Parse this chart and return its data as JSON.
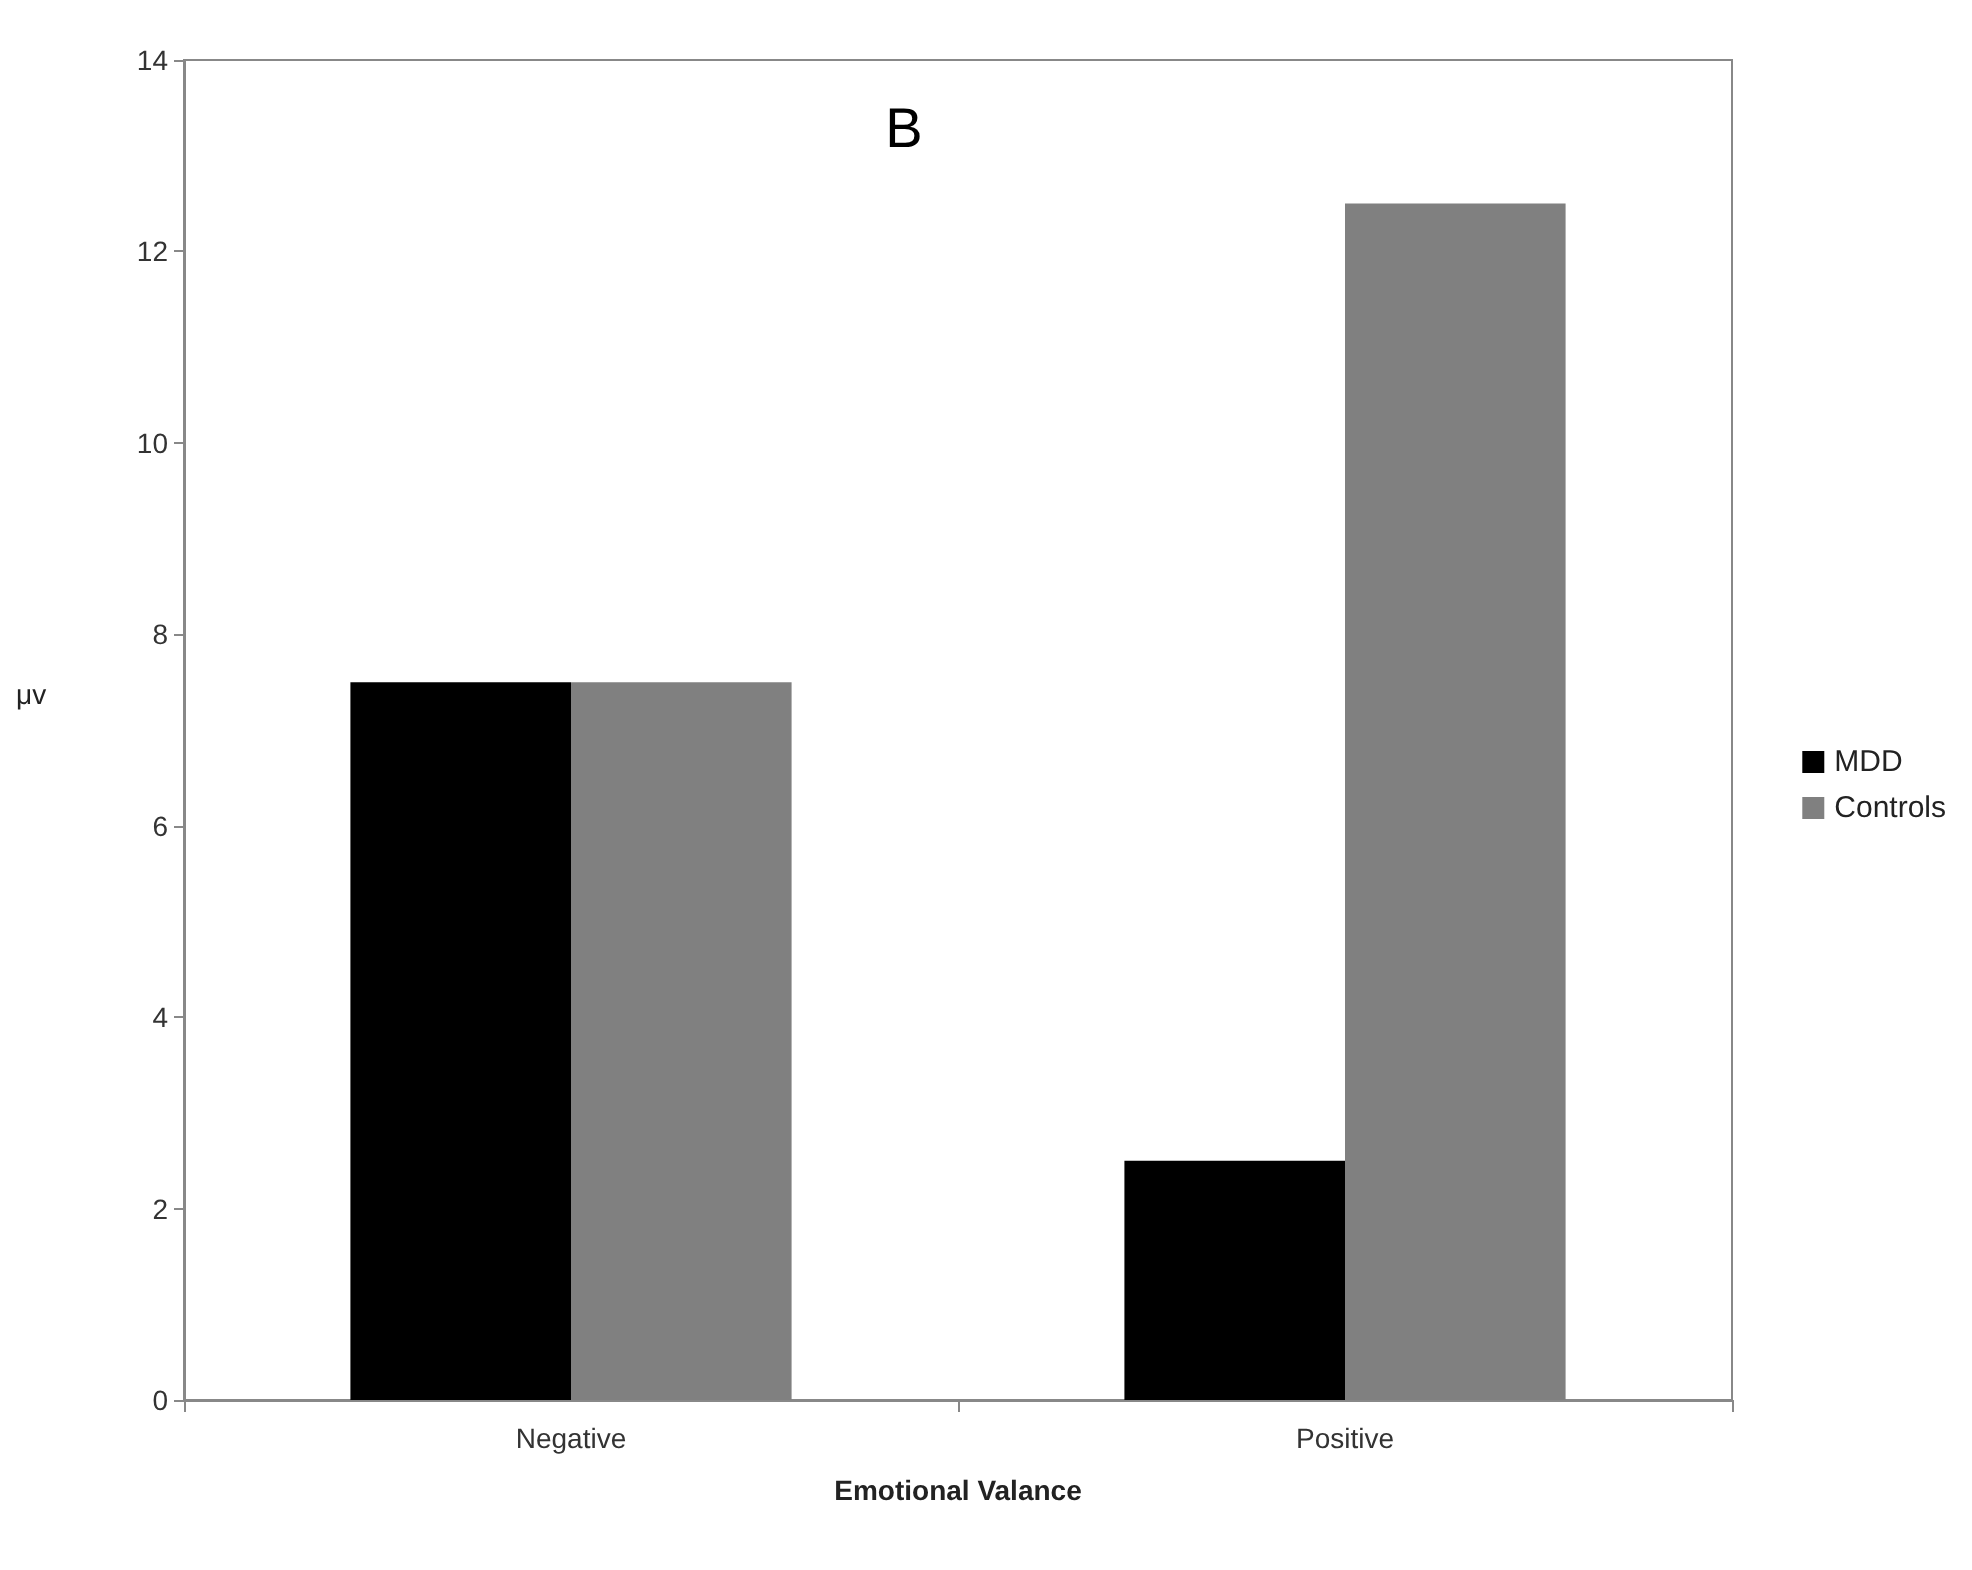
{
  "chart_data": {
    "type": "bar",
    "title": "B",
    "xlabel": "Emotional Valance",
    "ylabel": "μv",
    "categories": [
      "Negative",
      "Positive"
    ],
    "series": [
      {
        "name": "MDD",
        "color": "#000000",
        "values": [
          7.5,
          2.5
        ]
      },
      {
        "name": "Controls",
        "color": "#808080",
        "values": [
          7.5,
          12.5
        ]
      }
    ],
    "ylim": [
      0,
      14
    ],
    "yticks": [
      0,
      2,
      4,
      6,
      8,
      10,
      12,
      14
    ],
    "grid": false,
    "legend": "right"
  }
}
